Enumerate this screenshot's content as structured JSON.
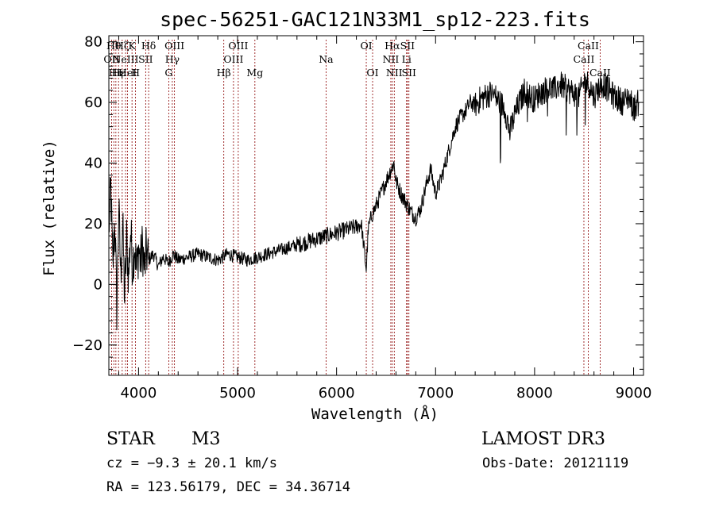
{
  "title": "spec-56251-GAC121N33M1_sp12-223.fits",
  "info": {
    "class": "STAR",
    "subclass": "M3",
    "survey": "LAMOST DR3",
    "redshift": "cz = −9.3 ± 20.1 km/s",
    "obs_date": "Obs-Date: 20121119",
    "coords": "RA = 123.56179, DEC =  34.36714"
  },
  "colors": {
    "spectrum": "#000000",
    "line_markers": "#8b0000",
    "background": "#ffffff"
  },
  "chart_data": {
    "type": "line",
    "xlabel": "Wavelength (Å)",
    "ylabel": "Flux (relative)",
    "xlim": [
      3700,
      9100
    ],
    "ylim": [
      -30,
      82
    ],
    "xticks": [
      4000,
      5000,
      6000,
      7000,
      8000,
      9000
    ],
    "xtick_labels": [
      "4000",
      "5000",
      "6000",
      "7000",
      "8000",
      "9000"
    ],
    "yticks": [
      -20,
      0,
      20,
      40,
      60,
      80
    ],
    "ytick_labels": [
      "−20",
      "0",
      "20",
      "40",
      "60",
      "80"
    ],
    "grid": false,
    "legend": "none",
    "series": [
      {
        "x": [
          3700,
          3720,
          3740,
          3760,
          3780,
          3800,
          3820,
          3840,
          3860,
          3880,
          3900,
          3920,
          3940,
          3960,
          3980,
          4000,
          4020,
          4040,
          4060,
          4080,
          4100,
          4150,
          4200,
          4250,
          4300,
          4350,
          4400,
          4500,
          4600,
          4700,
          4800,
          4900,
          5000,
          5100,
          5200,
          5300,
          5400,
          5500,
          5600,
          5700,
          5800,
          5900,
          6000,
          6100,
          6200,
          6250,
          6300,
          6320,
          6340,
          6360,
          6400,
          6450,
          6500,
          6550,
          6580,
          6600,
          6650,
          6700,
          6750,
          6800,
          6850,
          6900,
          6950,
          7000,
          7050,
          7100,
          7150,
          7200,
          7250,
          7300,
          7350,
          7400,
          7450,
          7500,
          7550,
          7600,
          7650,
          7700,
          7750,
          7800,
          7850,
          7900,
          7950,
          8000,
          8050,
          8100,
          8150,
          8200,
          8250,
          8300,
          8350,
          8400,
          8450,
          8500,
          8550,
          8600,
          8650,
          8700,
          8750,
          8800,
          8850,
          8900,
          8950,
          9000,
          9050
        ],
        "y": [
          18,
          32,
          5,
          22,
          -8,
          25,
          3,
          20,
          -5,
          15,
          2,
          18,
          6,
          14,
          4,
          12,
          7,
          13,
          5,
          11,
          8,
          10,
          6,
          9,
          7,
          10,
          8,
          9,
          10,
          9,
          8,
          10,
          9,
          8,
          9,
          10,
          11,
          12,
          13,
          14,
          15,
          16,
          17,
          18,
          19,
          20,
          5,
          18,
          21,
          23,
          26,
          30,
          34,
          38,
          40,
          34,
          30,
          27,
          24,
          22,
          25,
          32,
          38,
          30,
          34,
          40,
          46,
          52,
          55,
          57,
          60,
          59,
          61,
          62,
          63,
          62,
          60,
          58,
          50,
          56,
          60,
          64,
          62,
          61,
          63,
          64,
          65,
          64,
          66,
          65,
          64,
          63,
          62,
          67,
          66,
          62,
          65,
          66,
          64,
          62,
          61,
          60,
          62,
          58,
          60
        ]
      }
    ],
    "line_markers": [
      {
        "wl": 3728,
        "label": "OII",
        "row": 2
      },
      {
        "wl": 3750,
        "label": "Hθ",
        "row": 1
      },
      {
        "wl": 3771,
        "label": "Hη",
        "row": 3
      },
      {
        "wl": 3798,
        "label": "Hε",
        "row": 3
      },
      {
        "wl": 3835,
        "label": "Hζ",
        "row": 1
      },
      {
        "wl": 3869,
        "label": "NeIII",
        "row": 2
      },
      {
        "wl": 3889,
        "label": "HeI",
        "row": 3
      },
      {
        "wl": 3934,
        "label": "K",
        "row": 1
      },
      {
        "wl": 3969,
        "label": "H",
        "row": 3
      },
      {
        "wl": 4072,
        "label": "SII",
        "row": 2
      },
      {
        "wl": 4102,
        "label": "Hδ",
        "row": 1
      },
      {
        "wl": 4305,
        "label": "G",
        "row": 3
      },
      {
        "wl": 4341,
        "label": "Hγ",
        "row": 2
      },
      {
        "wl": 4363,
        "label": "OIII",
        "row": 1
      },
      {
        "wl": 4861,
        "label": "Hβ",
        "row": 3
      },
      {
        "wl": 4959,
        "label": "OIII",
        "row": 2
      },
      {
        "wl": 5007,
        "label": "OIII",
        "row": 1
      },
      {
        "wl": 5175,
        "label": "Mg",
        "row": 3
      },
      {
        "wl": 5894,
        "label": "Na",
        "row": 2
      },
      {
        "wl": 6300,
        "label": "OI",
        "row": 1
      },
      {
        "wl": 6364,
        "label": "OI",
        "row": 3
      },
      {
        "wl": 6548,
        "label": "NII",
        "row": 2
      },
      {
        "wl": 6563,
        "label": "Hα",
        "row": 1
      },
      {
        "wl": 6583,
        "label": "NII",
        "row": 3
      },
      {
        "wl": 6707,
        "label": "Li",
        "row": 2
      },
      {
        "wl": 6716,
        "label": "SII",
        "row": 1
      },
      {
        "wl": 6731,
        "label": "SII",
        "row": 3
      },
      {
        "wl": 8498,
        "label": "CaII",
        "row": 2
      },
      {
        "wl": 8542,
        "label": "CaII",
        "row": 1
      },
      {
        "wl": 8662,
        "label": "CaII",
        "row": 3
      }
    ]
  }
}
